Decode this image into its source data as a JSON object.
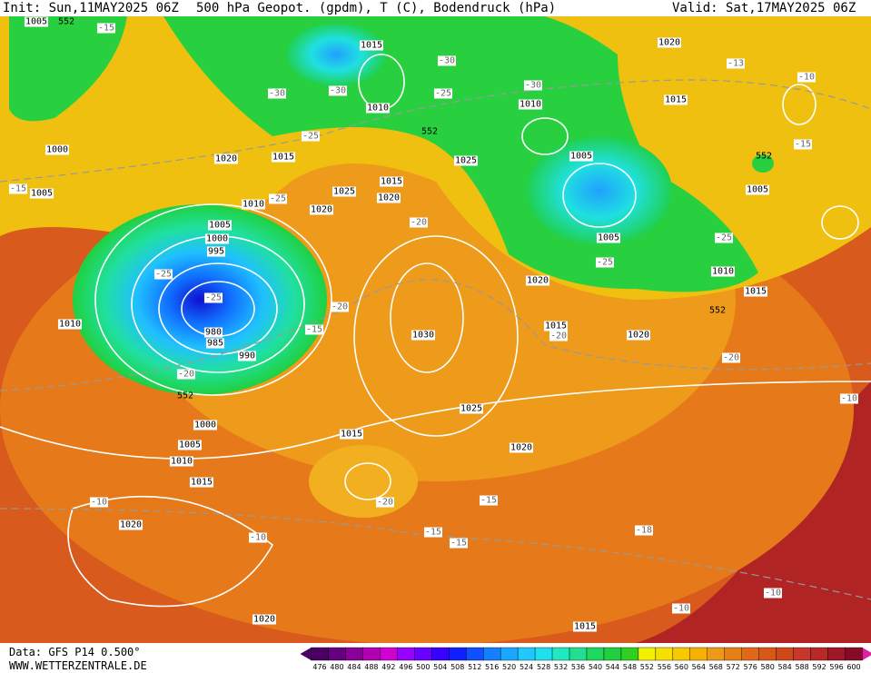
{
  "header": {
    "init": "Init: Sun,11MAY2025 06Z",
    "title": "500 hPa Geopot. (gpdm), T (C), Bodendruck (hPa)",
    "valid": "Valid: Sat,17MAY2025 06Z"
  },
  "footer": {
    "data": "Data: GFS P14 0.500°",
    "site": "WWW.WETTERZENTRALE.DE"
  },
  "colorbar": {
    "labels": [
      476,
      480,
      484,
      488,
      492,
      496,
      500,
      504,
      508,
      512,
      516,
      520,
      524,
      528,
      532,
      536,
      540,
      544,
      548,
      552,
      556,
      560,
      564,
      568,
      572,
      576,
      580,
      584,
      588,
      592,
      596,
      600
    ],
    "colors": [
      "#4b0066",
      "#66007f",
      "#8a0099",
      "#b000b0",
      "#d000d0",
      "#9a00ff",
      "#6a00ff",
      "#3a00ff",
      "#1020ff",
      "#1050ff",
      "#1480ff",
      "#18a8ff",
      "#20c8ff",
      "#20e0f0",
      "#20e8c0",
      "#20e090",
      "#20d860",
      "#20d040",
      "#30d020",
      "#f0f000",
      "#f5e000",
      "#f8c800",
      "#f8b000",
      "#f09818",
      "#e88018",
      "#e06818",
      "#d85818",
      "#d04818",
      "#c83828",
      "#b82828",
      "#a01828",
      "#880a28"
    ]
  },
  "map": {
    "isobars": [
      1005,
      1015,
      1020,
      1010,
      1010,
      1015,
      1000,
      1020,
      1015,
      1025,
      1005,
      1005,
      1025,
      1015,
      1020,
      1005,
      1010,
      1020,
      1005,
      1000,
      995,
      1005,
      1020,
      1010,
      1015,
      1010,
      980,
      985,
      1030,
      1015,
      1020,
      990,
      1025,
      1000,
      1005,
      1015,
      1020,
      1010,
      1015,
      1020,
      1020,
      1015
    ],
    "temperatures": [
      -15,
      -30,
      -13,
      -10,
      -30,
      -30,
      -25,
      -30,
      -25,
      -15,
      -15,
      -25,
      -20,
      -25,
      -25,
      -25,
      -25,
      -20,
      -15,
      -20,
      -20,
      -20,
      -10,
      -10,
      -20,
      -15,
      -15,
      -15,
      -18,
      -10,
      -10,
      -10
    ],
    "geopotential": [
      552,
      552,
      552,
      552,
      552
    ]
  }
}
